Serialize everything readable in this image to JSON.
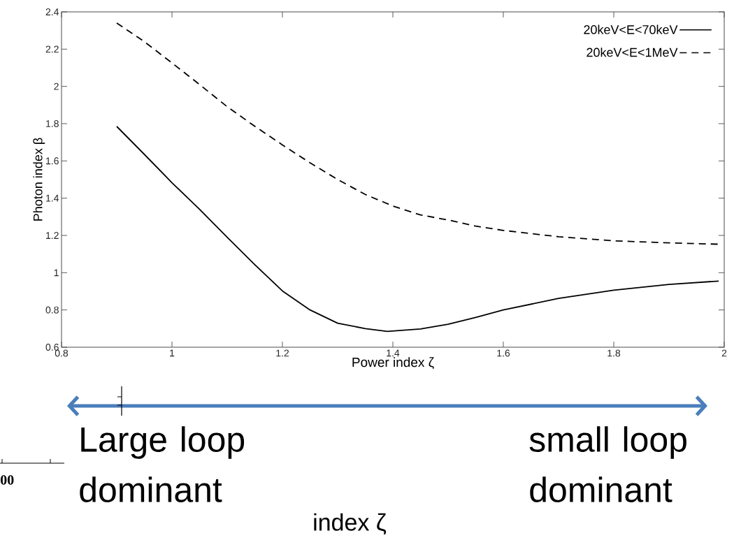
{
  "chart_data": {
    "type": "line",
    "xlabel": "Power index ζ",
    "ylabel": "Photon index β",
    "xlim": [
      0.8,
      2
    ],
    "ylim": [
      0.6,
      2.4
    ],
    "xticks": [
      0.8,
      1,
      1.2,
      1.4,
      1.6,
      1.8,
      2
    ],
    "yticks": [
      0.6,
      0.8,
      1,
      1.2,
      1.4,
      1.6,
      1.8,
      2,
      2.2,
      2.4
    ],
    "legend": "top right",
    "series": [
      {
        "name": "20keV<E<70keV",
        "color": "#000000",
        "line_style": "solid",
        "x": [
          0.9,
          0.95,
          1.0,
          1.05,
          1.1,
          1.15,
          1.2,
          1.25,
          1.3,
          1.35,
          1.39,
          1.45,
          1.5,
          1.55,
          1.6,
          1.7,
          1.8,
          1.9,
          1.99
        ],
        "values": [
          1.785,
          1.635,
          1.483,
          1.34,
          1.19,
          1.043,
          0.902,
          0.8,
          0.729,
          0.7,
          0.685,
          0.698,
          0.723,
          0.76,
          0.8,
          0.862,
          0.906,
          0.937,
          0.955
        ]
      },
      {
        "name": "20keV<E<1MeV",
        "color": "#000000",
        "line_style": "dashed",
        "x": [
          0.9,
          0.95,
          1.0,
          1.05,
          1.1,
          1.15,
          1.2,
          1.25,
          1.3,
          1.35,
          1.4,
          1.45,
          1.5,
          1.55,
          1.6,
          1.7,
          1.8,
          1.9,
          1.99
        ],
        "values": [
          2.34,
          2.24,
          2.126,
          2.01,
          1.891,
          1.786,
          1.686,
          1.59,
          1.5,
          1.42,
          1.358,
          1.31,
          1.283,
          1.25,
          1.227,
          1.193,
          1.171,
          1.16,
          1.153
        ]
      }
    ],
    "annotations": [
      "Large loop dominant",
      "small loop dominant",
      "index ζ",
      "00"
    ]
  }
}
